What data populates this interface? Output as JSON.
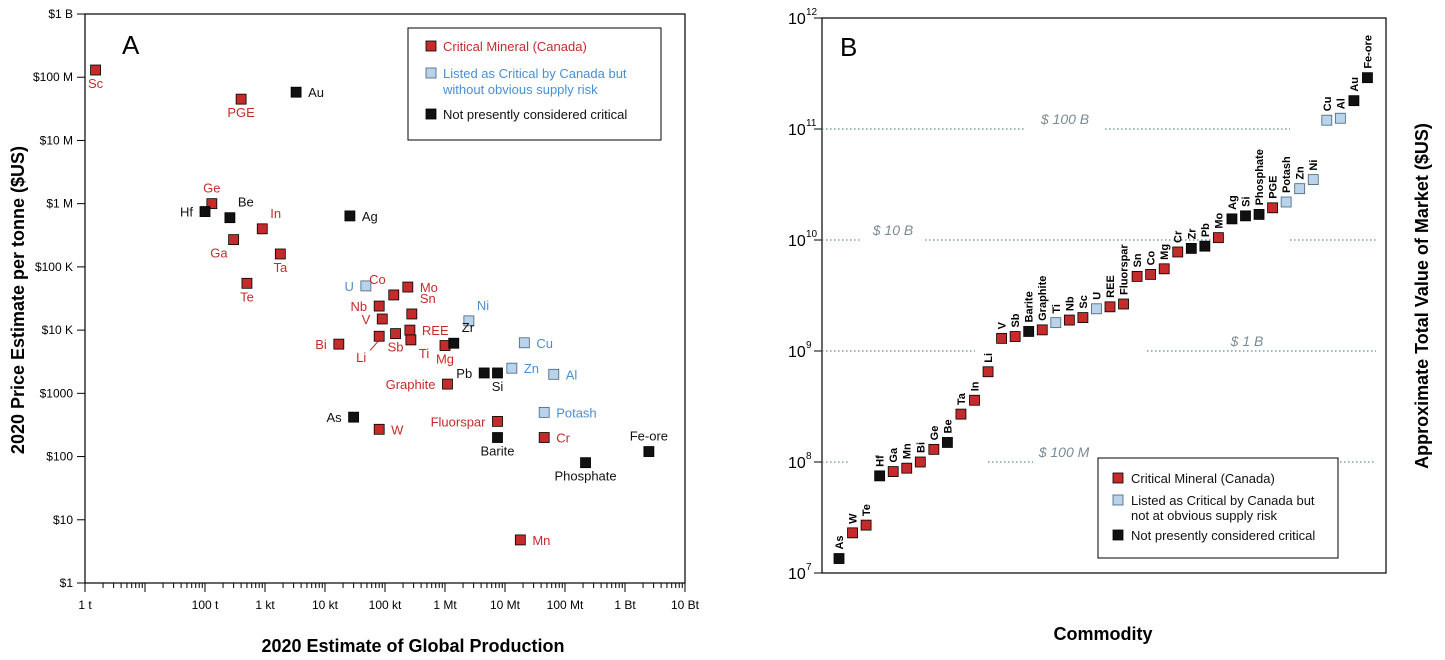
{
  "colors": {
    "critical": "#c62b2b",
    "listed": "#b9d3ea",
    "notcritical": "#111111",
    "critical_text": "#c62b2b",
    "listed_text": "#4b8fcf",
    "black_text": "#111111",
    "guide": "#5f8f99"
  },
  "chart_data": [
    {
      "type": "scatter",
      "panel_label": "A",
      "title": "",
      "xlabel": "2020 Estimate of Global Production",
      "ylabel": "2020 Price Estimate per tonne ($US)",
      "x_scale": "log",
      "y_scale": "log",
      "xlim": [
        1,
        10000000000
      ],
      "ylim": [
        1,
        1000000000
      ],
      "x_ticks": [
        {
          "value": 1,
          "label": "1 t"
        },
        {
          "value": 100,
          "label": "100 t"
        },
        {
          "value": 1000,
          "label": "1 kt"
        },
        {
          "value": 10000,
          "label": "10 kt"
        },
        {
          "value": 100000,
          "label": "100 kt"
        },
        {
          "value": 1000000,
          "label": "1 Mt"
        },
        {
          "value": 10000000,
          "label": "10 Mt"
        },
        {
          "value": 100000000,
          "label": "100 Mt"
        },
        {
          "value": 1000000000,
          "label": "1 Bt"
        },
        {
          "value": 10000000000,
          "label": "10 Bt"
        }
      ],
      "y_ticks": [
        {
          "value": 1,
          "label": "$1"
        },
        {
          "value": 10,
          "label": "$10"
        },
        {
          "value": 100,
          "label": "$100"
        },
        {
          "value": 1000,
          "label": "$1000"
        },
        {
          "value": 10000,
          "label": "$10 K"
        },
        {
          "value": 100000,
          "label": "$100 K"
        },
        {
          "value": 1000000,
          "label": "$1 M"
        },
        {
          "value": 10000000,
          "label": "$10 M"
        },
        {
          "value": 100000000,
          "label": "$100 M"
        },
        {
          "value": 1000000000,
          "label": "$1 B"
        }
      ],
      "legend": {
        "position": "top-right",
        "entries": [
          {
            "category": "critical",
            "label_lines": [
              "Critical Mineral (Canada)"
            ]
          },
          {
            "category": "listed",
            "label_lines": [
              "Listed as Critical by Canada but",
              "without obvious supply risk"
            ]
          },
          {
            "category": "notcritical",
            "label_lines": [
              "Not presently considered critical"
            ]
          }
        ]
      },
      "points": [
        {
          "label": "Sc",
          "category": "critical",
          "x": 1.5,
          "y": 130000000,
          "lpos": "below"
        },
        {
          "label": "PGE",
          "category": "critical",
          "x": 400,
          "y": 45000000,
          "lpos": "below"
        },
        {
          "label": "Au",
          "category": "notcritical",
          "x": 3300,
          "y": 58000000,
          "lpos": "right"
        },
        {
          "label": "Ge",
          "category": "critical",
          "x": 130,
          "y": 1000000,
          "lpos": "above"
        },
        {
          "label": "Hf",
          "category": "notcritical",
          "x": 100,
          "y": 750000,
          "lpos": "left"
        },
        {
          "label": "Be",
          "category": "notcritical",
          "x": 260,
          "y": 600000,
          "lpos": "aboveright"
        },
        {
          "label": "In",
          "category": "critical",
          "x": 900,
          "y": 400000,
          "lpos": "aboveright"
        },
        {
          "label": "Ga",
          "category": "critical",
          "x": 300,
          "y": 270000,
          "lpos": "belowleft"
        },
        {
          "label": "Ta",
          "category": "critical",
          "x": 1800,
          "y": 160000,
          "lpos": "below"
        },
        {
          "label": "Te",
          "category": "critical",
          "x": 500,
          "y": 55000,
          "lpos": "below"
        },
        {
          "label": "Ag",
          "category": "notcritical",
          "x": 26000,
          "y": 640000,
          "lpos": "right"
        },
        {
          "label": "U",
          "category": "listed",
          "x": 48000,
          "y": 50000,
          "lpos": "left"
        },
        {
          "label": "Co",
          "category": "critical",
          "x": 140000,
          "y": 36000,
          "lpos": "aboveleft"
        },
        {
          "label": "Mo",
          "category": "critical",
          "x": 240000,
          "y": 48000,
          "lpos": "right"
        },
        {
          "label": "Nb",
          "category": "critical",
          "x": 80000,
          "y": 24000,
          "lpos": "left"
        },
        {
          "label": "Sn",
          "category": "critical",
          "x": 280000,
          "y": 18000,
          "lpos": "aboveright"
        },
        {
          "label": "V",
          "category": "critical",
          "x": 90000,
          "y": 15000,
          "lpos": "left"
        },
        {
          "label": "Ni",
          "category": "listed",
          "x": 2500000,
          "y": 14000,
          "lpos": "aboveright"
        },
        {
          "label": "REE",
          "category": "critical",
          "x": 260000,
          "y": 10000,
          "lpos": "right"
        },
        {
          "label": "Li",
          "category": "critical",
          "x": 80000,
          "y": 8000,
          "lpos": "below",
          "leader": true
        },
        {
          "label": "Sb",
          "category": "critical",
          "x": 150000,
          "y": 8800,
          "lpos": "below"
        },
        {
          "label": "Ti",
          "category": "critical",
          "x": 270000,
          "y": 7000,
          "lpos": "belowright"
        },
        {
          "label": "Bi",
          "category": "critical",
          "x": 17000,
          "y": 6000,
          "lpos": "left"
        },
        {
          "label": "Mg",
          "category": "critical",
          "x": 1000000,
          "y": 5700,
          "lpos": "below"
        },
        {
          "label": "Zr",
          "category": "notcritical",
          "x": 1400000,
          "y": 6200,
          "lpos": "aboveright"
        },
        {
          "label": "Cu",
          "category": "listed",
          "x": 21000000,
          "y": 6300,
          "lpos": "right"
        },
        {
          "label": "Pb",
          "category": "notcritical",
          "x": 4500000,
          "y": 2100,
          "lpos": "left"
        },
        {
          "label": "Si",
          "category": "notcritical",
          "x": 7500000,
          "y": 2100,
          "lpos": "below"
        },
        {
          "label": "Zn",
          "category": "listed",
          "x": 13000000,
          "y": 2500,
          "lpos": "right"
        },
        {
          "label": "Al",
          "category": "listed",
          "x": 65000000,
          "y": 2000,
          "lpos": "right"
        },
        {
          "label": "Graphite",
          "category": "critical",
          "x": 1100000,
          "y": 1400,
          "lpos": "left"
        },
        {
          "label": "As",
          "category": "notcritical",
          "x": 30000,
          "y": 420,
          "lpos": "left"
        },
        {
          "label": "W",
          "category": "critical",
          "x": 80000,
          "y": 270,
          "lpos": "right"
        },
        {
          "label": "Fluorspar",
          "category": "critical",
          "x": 7500000,
          "y": 360,
          "lpos": "left"
        },
        {
          "label": "Potash",
          "category": "listed",
          "x": 45000000,
          "y": 500,
          "lpos": "right"
        },
        {
          "label": "Barite",
          "category": "notcritical",
          "x": 7500000,
          "y": 200,
          "lpos": "below"
        },
        {
          "label": "Cr",
          "category": "critical",
          "x": 45000000,
          "y": 200,
          "lpos": "right"
        },
        {
          "label": "Fe-ore",
          "category": "notcritical",
          "x": 2500000000,
          "y": 120,
          "lpos": "above"
        },
        {
          "label": "Phosphate",
          "category": "notcritical",
          "x": 220000000,
          "y": 80,
          "lpos": "below"
        },
        {
          "label": "Mn",
          "category": "critical",
          "x": 18000000,
          "y": 4.8,
          "lpos": "right"
        }
      ]
    },
    {
      "type": "scatter",
      "panel_label": "B",
      "title": "",
      "xlabel": "Commodity",
      "ylabel": "Approximate Total Value of Market ($US)",
      "y_scale": "log",
      "ylim": [
        10000000,
        1000000000000
      ],
      "y_ticks": [
        {
          "exp": 7,
          "base": "10",
          "power": "7"
        },
        {
          "exp": 8,
          "base": "10",
          "power": "8"
        },
        {
          "exp": 9,
          "base": "10",
          "power": "9"
        },
        {
          "exp": 10,
          "base": "10",
          "power": "10"
        },
        {
          "exp": 11,
          "base": "10",
          "power": "11"
        },
        {
          "exp": 12,
          "base": "10",
          "power": "12"
        }
      ],
      "guides": [
        {
          "value": 100000000000,
          "label": "$ 100 B"
        },
        {
          "value": 10000000000,
          "label": "$ 10 B"
        },
        {
          "value": 1000000000,
          "label": "$ 1 B"
        },
        {
          "value": 100000000,
          "label": "$ 100 M"
        }
      ],
      "legend": {
        "position": "bottom-right",
        "entries": [
          {
            "category": "critical",
            "label_lines": [
              "Critical Mineral (Canada)"
            ]
          },
          {
            "category": "listed",
            "label_lines": [
              "Listed as Critical by Canada but",
              "not at obvious supply risk"
            ]
          },
          {
            "category": "notcritical",
            "label_lines": [
              "Not presently considered critical"
            ]
          }
        ]
      },
      "points": [
        {
          "label": "As",
          "category": "notcritical",
          "value": 13500000
        },
        {
          "label": "W",
          "category": "critical",
          "value": 23000000
        },
        {
          "label": "Te",
          "category": "critical",
          "value": 27000000
        },
        {
          "label": "Hf",
          "category": "notcritical",
          "value": 75000000
        },
        {
          "label": "Ga",
          "category": "critical",
          "value": 82000000
        },
        {
          "label": "Mn",
          "category": "critical",
          "value": 88000000
        },
        {
          "label": "Bi",
          "category": "critical",
          "value": 100000000
        },
        {
          "label": "Ge",
          "category": "critical",
          "value": 130000000
        },
        {
          "label": "Be",
          "category": "notcritical",
          "value": 150000000
        },
        {
          "label": "Ta",
          "category": "critical",
          "value": 270000000
        },
        {
          "label": "In",
          "category": "critical",
          "value": 360000000
        },
        {
          "label": "Li",
          "category": "critical",
          "value": 650000000
        },
        {
          "label": "V",
          "category": "critical",
          "value": 1300000000
        },
        {
          "label": "Sb",
          "category": "critical",
          "value": 1350000000
        },
        {
          "label": "Barite",
          "category": "notcritical",
          "value": 1500000000
        },
        {
          "label": "Graphite",
          "category": "critical",
          "value": 1550000000
        },
        {
          "label": "Ti",
          "category": "listed",
          "value": 1800000000
        },
        {
          "label": "Nb",
          "category": "critical",
          "value": 1900000000
        },
        {
          "label": "Sc",
          "category": "critical",
          "value": 2000000000
        },
        {
          "label": "U",
          "category": "listed",
          "value": 2400000000
        },
        {
          "label": "REE",
          "category": "critical",
          "value": 2500000000
        },
        {
          "label": "Fluorspar",
          "category": "critical",
          "value": 2650000000
        },
        {
          "label": "Sn",
          "category": "critical",
          "value": 4700000000
        },
        {
          "label": "Co",
          "category": "critical",
          "value": 4900000000
        },
        {
          "label": "Mg",
          "category": "critical",
          "value": 5500000000
        },
        {
          "label": "Cr",
          "category": "critical",
          "value": 7800000000
        },
        {
          "label": "Zr",
          "category": "notcritical",
          "value": 8400000000
        },
        {
          "label": "Pb",
          "category": "notcritical",
          "value": 8800000000
        },
        {
          "label": "Mo",
          "category": "critical",
          "value": 10500000000
        },
        {
          "label": "Ag",
          "category": "notcritical",
          "value": 15500000000
        },
        {
          "label": "Si",
          "category": "notcritical",
          "value": 16500000000
        },
        {
          "label": "Phosphate",
          "category": "notcritical",
          "value": 17000000000
        },
        {
          "label": "PGE",
          "category": "critical",
          "value": 19500000000
        },
        {
          "label": "Potash",
          "category": "listed",
          "value": 22000000000
        },
        {
          "label": "Zn",
          "category": "listed",
          "value": 29000000000
        },
        {
          "label": "Ni",
          "category": "listed",
          "value": 35000000000
        },
        {
          "label": "Cu",
          "category": "listed",
          "value": 120000000000
        },
        {
          "label": "Al",
          "category": "listed",
          "value": 125000000000
        },
        {
          "label": "Au",
          "category": "notcritical",
          "value": 180000000000
        },
        {
          "label": "Fe-ore",
          "category": "notcritical",
          "value": 290000000000
        }
      ]
    }
  ]
}
